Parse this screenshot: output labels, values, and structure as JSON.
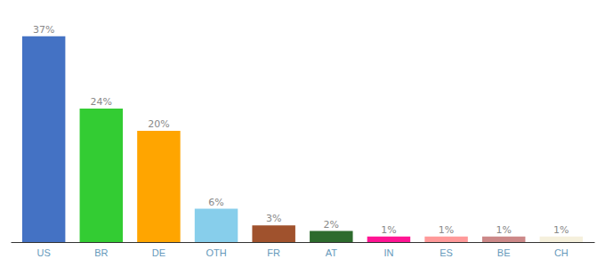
{
  "chart_data": {
    "type": "bar",
    "categories": [
      "US",
      "BR",
      "DE",
      "OTH",
      "FR",
      "AT",
      "IN",
      "ES",
      "BE",
      "CH"
    ],
    "values": [
      37,
      24,
      20,
      6,
      3,
      2,
      1,
      1,
      1,
      1
    ],
    "value_labels": [
      "37%",
      "24%",
      "20%",
      "6%",
      "3%",
      "2%",
      "1%",
      "1%",
      "1%",
      "1%"
    ],
    "colors": [
      "#4472C4",
      "#33CC33",
      "#FFA500",
      "#87CEEB",
      "#A0522D",
      "#2D6B2D",
      "#FF1493",
      "#FF9999",
      "#CC8888",
      "#F5F0DC"
    ],
    "ylim": [
      0,
      40
    ],
    "data_labels": true,
    "tick_labels": "x",
    "grid": false
  }
}
